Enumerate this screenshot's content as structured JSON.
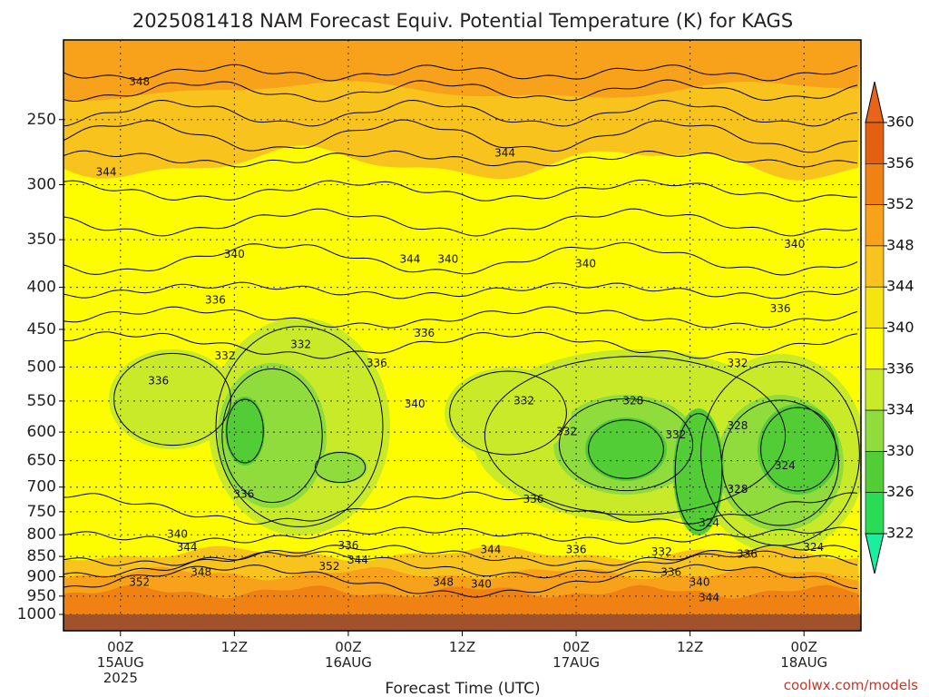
{
  "chart_data": {
    "type": "contour",
    "title": "2025081418 NAM Forecast Equiv. Potential Temperature (K) for KAGS",
    "xlabel": "Forecast Time (UTC)",
    "ylabel": "",
    "credit": "coolwx.com/models",
    "pressure_ticks": [
      "250",
      "300",
      "350",
      "400",
      "450",
      "500",
      "550",
      "600",
      "650",
      "700",
      "750",
      "800",
      "850",
      "900",
      "950",
      "1000"
    ],
    "pressure_values": [
      250,
      300,
      350,
      400,
      450,
      500,
      550,
      600,
      650,
      700,
      750,
      800,
      850,
      900,
      950,
      1000
    ],
    "ylim": [
      200,
      1000
    ],
    "y_scale": "log-pressure",
    "x_ticks": [
      {
        "hour": 6,
        "lines": [
          "00Z",
          "15AUG",
          "2025"
        ]
      },
      {
        "hour": 18,
        "lines": [
          "12Z"
        ]
      },
      {
        "hour": 30,
        "lines": [
          "00Z",
          "16AUG"
        ]
      },
      {
        "hour": 42,
        "lines": [
          "12Z"
        ]
      },
      {
        "hour": 54,
        "lines": [
          "00Z",
          "17AUG"
        ]
      },
      {
        "hour": 66,
        "lines": [
          "12Z"
        ]
      },
      {
        "hour": 78,
        "lines": [
          "00Z",
          "18AUG"
        ]
      }
    ],
    "xlim": [
      0,
      84
    ],
    "grid": true,
    "colorbar": {
      "levels": [
        "360",
        "356",
        "352",
        "348",
        "344",
        "340",
        "336",
        "334",
        "330",
        "326",
        "322"
      ],
      "colors": [
        "#e45f10",
        "#f08214",
        "#f7a21a",
        "#f9c31e",
        "#f6e40e",
        "#fdfd00",
        "#c8ea28",
        "#8fdc3c",
        "#52cd36",
        "#2adc55",
        "#1ef08c"
      ],
      "top_color": "#e86418",
      "bottom_color": "#18f0a0"
    },
    "contour_labels": [
      {
        "t": "348",
        "h": 8,
        "p": 225
      },
      {
        "t": "344",
        "h": 4.5,
        "p": 290
      },
      {
        "t": "344",
        "h": 46.5,
        "p": 275
      },
      {
        "t": "340",
        "h": 18,
        "p": 365
      },
      {
        "t": "344",
        "h": 36.5,
        "p": 370
      },
      {
        "t": "340",
        "h": 40.5,
        "p": 370
      },
      {
        "t": "340",
        "h": 55,
        "p": 375
      },
      {
        "t": "340",
        "h": 77,
        "p": 355
      },
      {
        "t": "336",
        "h": 16,
        "p": 415
      },
      {
        "t": "336",
        "h": 75.5,
        "p": 425
      },
      {
        "t": "336",
        "h": 38,
        "p": 455
      },
      {
        "t": "332",
        "h": 17,
        "p": 485
      },
      {
        "t": "332",
        "h": 25,
        "p": 470
      },
      {
        "t": "336",
        "h": 33,
        "p": 495
      },
      {
        "t": "336",
        "h": 10,
        "p": 520
      },
      {
        "t": "332",
        "h": 48.5,
        "p": 550
      },
      {
        "t": "340",
        "h": 37,
        "p": 555
      },
      {
        "t": "328",
        "h": 60,
        "p": 550
      },
      {
        "t": "332",
        "h": 53,
        "p": 600
      },
      {
        "t": "332",
        "h": 64.5,
        "p": 605
      },
      {
        "t": "328",
        "h": 71,
        "p": 590
      },
      {
        "t": "332",
        "h": 71,
        "p": 495
      },
      {
        "t": "324",
        "h": 76,
        "p": 660
      },
      {
        "t": "328",
        "h": 71,
        "p": 705
      },
      {
        "t": "336",
        "h": 19,
        "p": 715
      },
      {
        "t": "336",
        "h": 49.5,
        "p": 725
      },
      {
        "t": "324",
        "h": 68,
        "p": 775
      },
      {
        "t": "340",
        "h": 12,
        "p": 800
      },
      {
        "t": "344",
        "h": 13,
        "p": 830
      },
      {
        "t": "336",
        "h": 30,
        "p": 825
      },
      {
        "t": "344",
        "h": 31,
        "p": 860
      },
      {
        "t": "352",
        "h": 28,
        "p": 875
      },
      {
        "t": "348",
        "h": 14.5,
        "p": 890
      },
      {
        "t": "344",
        "h": 45,
        "p": 835
      },
      {
        "t": "336",
        "h": 54,
        "p": 835
      },
      {
        "t": "332",
        "h": 63,
        "p": 840
      },
      {
        "t": "336",
        "h": 72,
        "p": 845
      },
      {
        "t": "324",
        "h": 79,
        "p": 830
      },
      {
        "t": "352",
        "h": 8,
        "p": 915
      },
      {
        "t": "348",
        "h": 40,
        "p": 915
      },
      {
        "t": "340",
        "h": 44,
        "p": 920
      },
      {
        "t": "336",
        "h": 64,
        "p": 890
      },
      {
        "t": "340",
        "h": 67,
        "p": 915
      },
      {
        "t": "344",
        "h": 68,
        "p": 955
      }
    ]
  }
}
